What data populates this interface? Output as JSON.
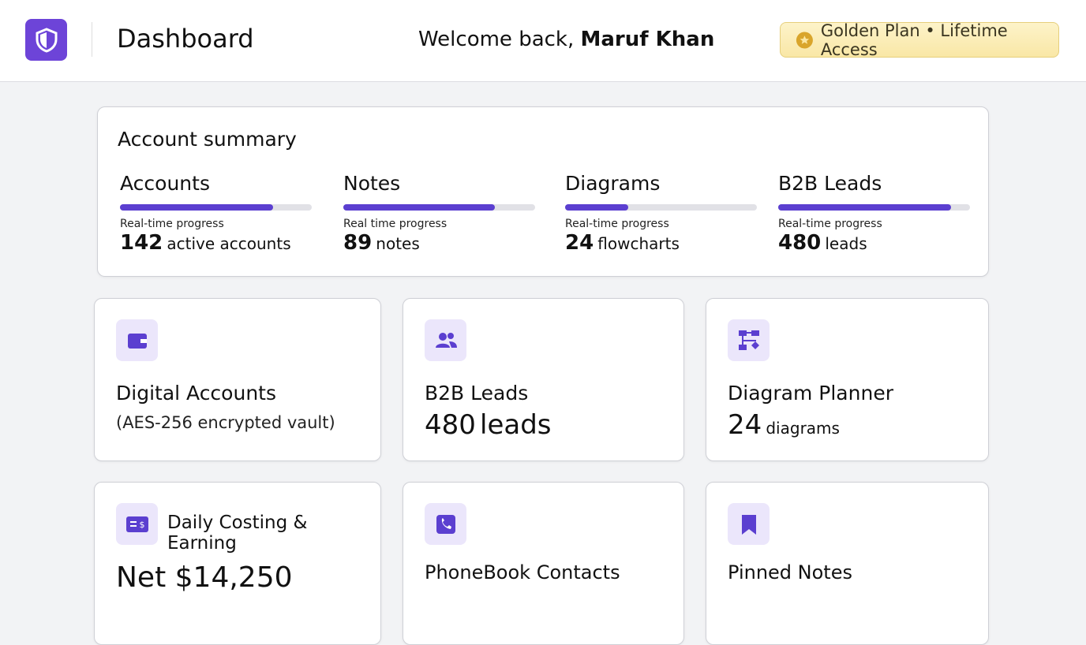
{
  "header": {
    "title": "Dashboard",
    "welcome": "Welcome back,",
    "user": "Maruf Khan",
    "plan": "Golden Plan • Lifetime Access"
  },
  "summary": {
    "title": "Account summary",
    "items": [
      {
        "label": "Accounts",
        "caption": "Real-time progress",
        "count": 142,
        "unit": "active accounts",
        "progress": 80
      },
      {
        "label": "Notes",
        "caption": "Real time progress",
        "count": 89,
        "unit": "notes",
        "progress": 79
      },
      {
        "label": "Diagrams",
        "caption": "Real-time progress",
        "count": 24,
        "unit": "flowcharts",
        "progress": 33
      },
      {
        "label": "B2B Leads",
        "caption": "Real-time progress",
        "count": 480,
        "unit": "leads",
        "progress": 90
      }
    ]
  },
  "cards": [
    {
      "title": "Digital Accounts",
      "subtitle": "(AES-256 encrypted vault)"
    },
    {
      "title": "B2B Leads",
      "count": 480,
      "unit": "leads"
    },
    {
      "title": "Diagram Planner",
      "count": 24,
      "unit": "diagrams"
    },
    {
      "title": "Daily Costing & Earning",
      "value": "Net $14,250"
    },
    {
      "title": "PhoneBook Contacts"
    },
    {
      "title": "Pinned Notes"
    }
  ]
}
